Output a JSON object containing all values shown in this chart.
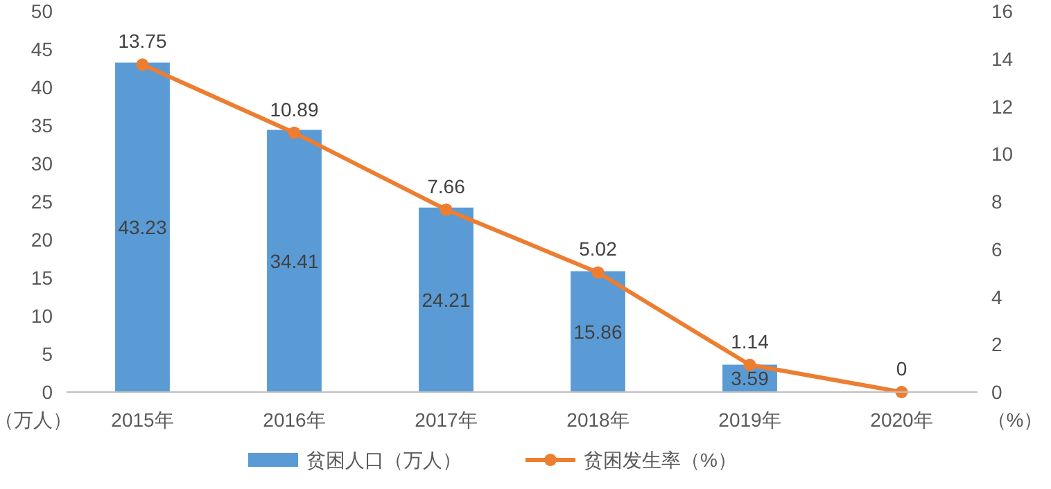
{
  "chart_data": {
    "type": "bar",
    "categories": [
      "2015年",
      "2016年",
      "2017年",
      "2018年",
      "2019年",
      "2020年"
    ],
    "series": [
      {
        "name": "贫困人口（万人）",
        "color": "#5b9bd5",
        "values": [
          43.23,
          34.41,
          24.21,
          15.86,
          3.59,
          null
        ]
      },
      {
        "name": "贫困发生率（%）",
        "type": "line",
        "axis": "y2",
        "color": "#ed7d31",
        "marker": "circle",
        "values": [
          13.75,
          10.89,
          7.66,
          5.02,
          1.14,
          0
        ]
      }
    ],
    "ylabel": "（万人）",
    "y2label": "（%）",
    "ylim": [
      0,
      50
    ],
    "yticks": [
      0,
      5,
      10,
      15,
      20,
      25,
      30,
      35,
      40,
      45,
      50
    ],
    "y2lim": [
      0,
      16
    ],
    "y2ticks": [
      0,
      2,
      4,
      6,
      8,
      10,
      12,
      14,
      16
    ],
    "data_labels": true,
    "grid": false,
    "legend": "bottom"
  }
}
